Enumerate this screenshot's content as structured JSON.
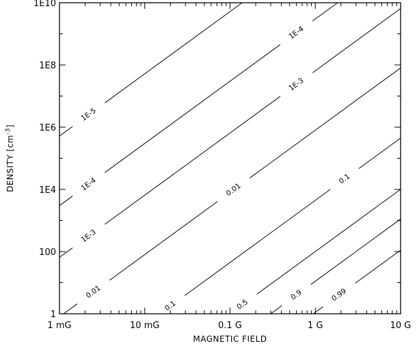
{
  "chart_data": {
    "type": "line",
    "title": "",
    "xlabel": "MAGNETIC FIELD",
    "ylabel_main": "DENSITY",
    "ylabel_unit": "cm",
    "ylabel_exp": "-3",
    "x_scale": "log",
    "y_scale": "log",
    "xlim_gauss": [
      0.001,
      10
    ],
    "ylim_cm3": [
      1,
      10000000000
    ],
    "grid": false,
    "x_ticks": [
      {
        "value": 0.001,
        "label": "1 mG"
      },
      {
        "value": 0.01,
        "label": "10 mG"
      },
      {
        "value": 0.1,
        "label": "0.1 G"
      },
      {
        "value": 1,
        "label": "1 G"
      },
      {
        "value": 10,
        "label": "10 G"
      }
    ],
    "y_ticks": [
      {
        "value": 1,
        "label": "1"
      },
      {
        "value": 100,
        "label": "100"
      },
      {
        "value": 10000,
        "label": "1E4"
      },
      {
        "value": 1000000,
        "label": "1E6"
      },
      {
        "value": 100000000,
        "label": "1E8"
      },
      {
        "value": 10000000000,
        "label": "1E10"
      }
    ],
    "contour_slope_log": 2,
    "contours": [
      {
        "label": "1E-5",
        "anchor_gauss": 0.001,
        "anchor_density": 520000,
        "labels_at_gauss": [
          0.0022
        ]
      },
      {
        "label": "1E-4",
        "anchor_gauss": 0.001,
        "anchor_density": 3000,
        "labels_at_gauss": [
          0.0022,
          0.6
        ]
      },
      {
        "label": "1E-3",
        "anchor_gauss": 0.001,
        "anchor_density": 65,
        "labels_at_gauss": [
          0.0022,
          0.6
        ]
      },
      {
        "label": "0.01",
        "anchor_gauss": 0.001,
        "anchor_density": 0.8,
        "labels_at_gauss": [
          0.0025,
          0.11
        ]
      },
      {
        "label": "0.1",
        "anchor_gauss": 0.015,
        "anchor_density": 1,
        "labels_at_gauss": [
          0.02,
          2.2
        ]
      },
      {
        "label": "0.5",
        "anchor_gauss": 0.1,
        "anchor_density": 1,
        "labels_at_gauss": [
          0.14
        ]
      },
      {
        "label": "0.9",
        "anchor_gauss": 0.3,
        "anchor_density": 1,
        "labels_at_gauss": [
          0.6
        ]
      },
      {
        "label": "0.99",
        "anchor_gauss": 0.95,
        "anchor_density": 1,
        "labels_at_gauss": [
          1.9
        ]
      }
    ]
  }
}
